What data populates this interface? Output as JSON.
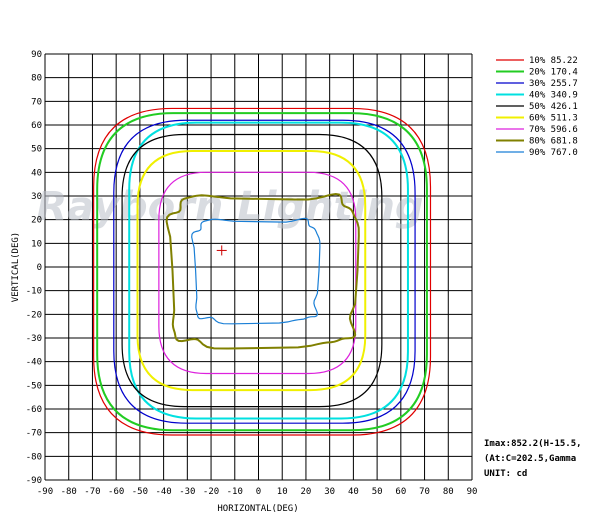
{
  "chart_data": {
    "type": "line",
    "title": "",
    "xlabel": "HORIZONTAL(DEG)",
    "ylabel": "VERTICAL(DEG)",
    "xlim": [
      -90,
      90
    ],
    "ylim": [
      -90,
      90
    ],
    "grid": true,
    "legend_position": "top-right",
    "x_ticks": [
      "-90",
      "-80",
      "-70",
      "-60",
      "-50",
      "-40",
      "-30",
      "-20",
      "-10",
      "0",
      "10",
      "20",
      "30",
      "40",
      "50",
      "60",
      "70",
      "80",
      "90"
    ],
    "y_ticks": [
      "90",
      "80",
      "70",
      "60",
      "50",
      "40",
      "30",
      "20",
      "10",
      "0",
      "-10",
      "-20",
      "-30",
      "-40",
      "-50",
      "-60",
      "-70",
      "-80",
      "-90"
    ],
    "watermark": "Rayborn Lighting",
    "peak_marker": {
      "x": -15.5,
      "y": 7
    },
    "series": [
      {
        "name": "10%  85.22",
        "color": "#e00000",
        "shape": "roundrect",
        "x_left": -69.5,
        "x_right": 72.5,
        "y_top": 67,
        "y_bottom": -71
      },
      {
        "name": "20% 170.4",
        "color": "#22cc22",
        "shape": "roundrect",
        "x_left": -68,
        "x_right": 71,
        "y_top": 65,
        "y_bottom": -69
      },
      {
        "name": "30% 255.7",
        "color": "#0000cc",
        "shape": "roundrect",
        "x_left": -61,
        "x_right": 66,
        "y_top": 62,
        "y_bottom": -66
      },
      {
        "name": "40% 340.9",
        "color": "#00e0e0",
        "shape": "roundrect",
        "x_left": -54.5,
        "x_right": 63,
        "y_top": 61,
        "y_bottom": -64
      },
      {
        "name": "50% 426.1",
        "color": "#000000",
        "shape": "roundrect",
        "x_left": -57.5,
        "x_right": 52,
        "y_top": 56,
        "y_bottom": -59
      },
      {
        "name": "60% 511.3",
        "color": "#f0f000",
        "shape": "roundrect",
        "x_left": -51,
        "x_right": 45,
        "y_top": 49,
        "y_bottom": -52
      },
      {
        "name": "70% 596.6",
        "color": "#dd22dd",
        "shape": "roundrect",
        "x_left": -42,
        "x_right": 41,
        "y_top": 40,
        "y_bottom": -45
      },
      {
        "name": "80% 681.8",
        "color": "#808000",
        "shape": "blob",
        "x_left": -37,
        "x_right": 41,
        "y_top": 30,
        "y_bottom": -33
      },
      {
        "name": "90% 767.0",
        "color": "#1a7fd6",
        "shape": "blob",
        "x_left": -27,
        "x_right": 25,
        "y_top": 20,
        "y_bottom": -23
      }
    ]
  },
  "info": {
    "imax": "Imax:852.2(H-15.5,",
    "at": " (At:C=202.5,Gamma",
    "unit": "UNIT: cd"
  }
}
